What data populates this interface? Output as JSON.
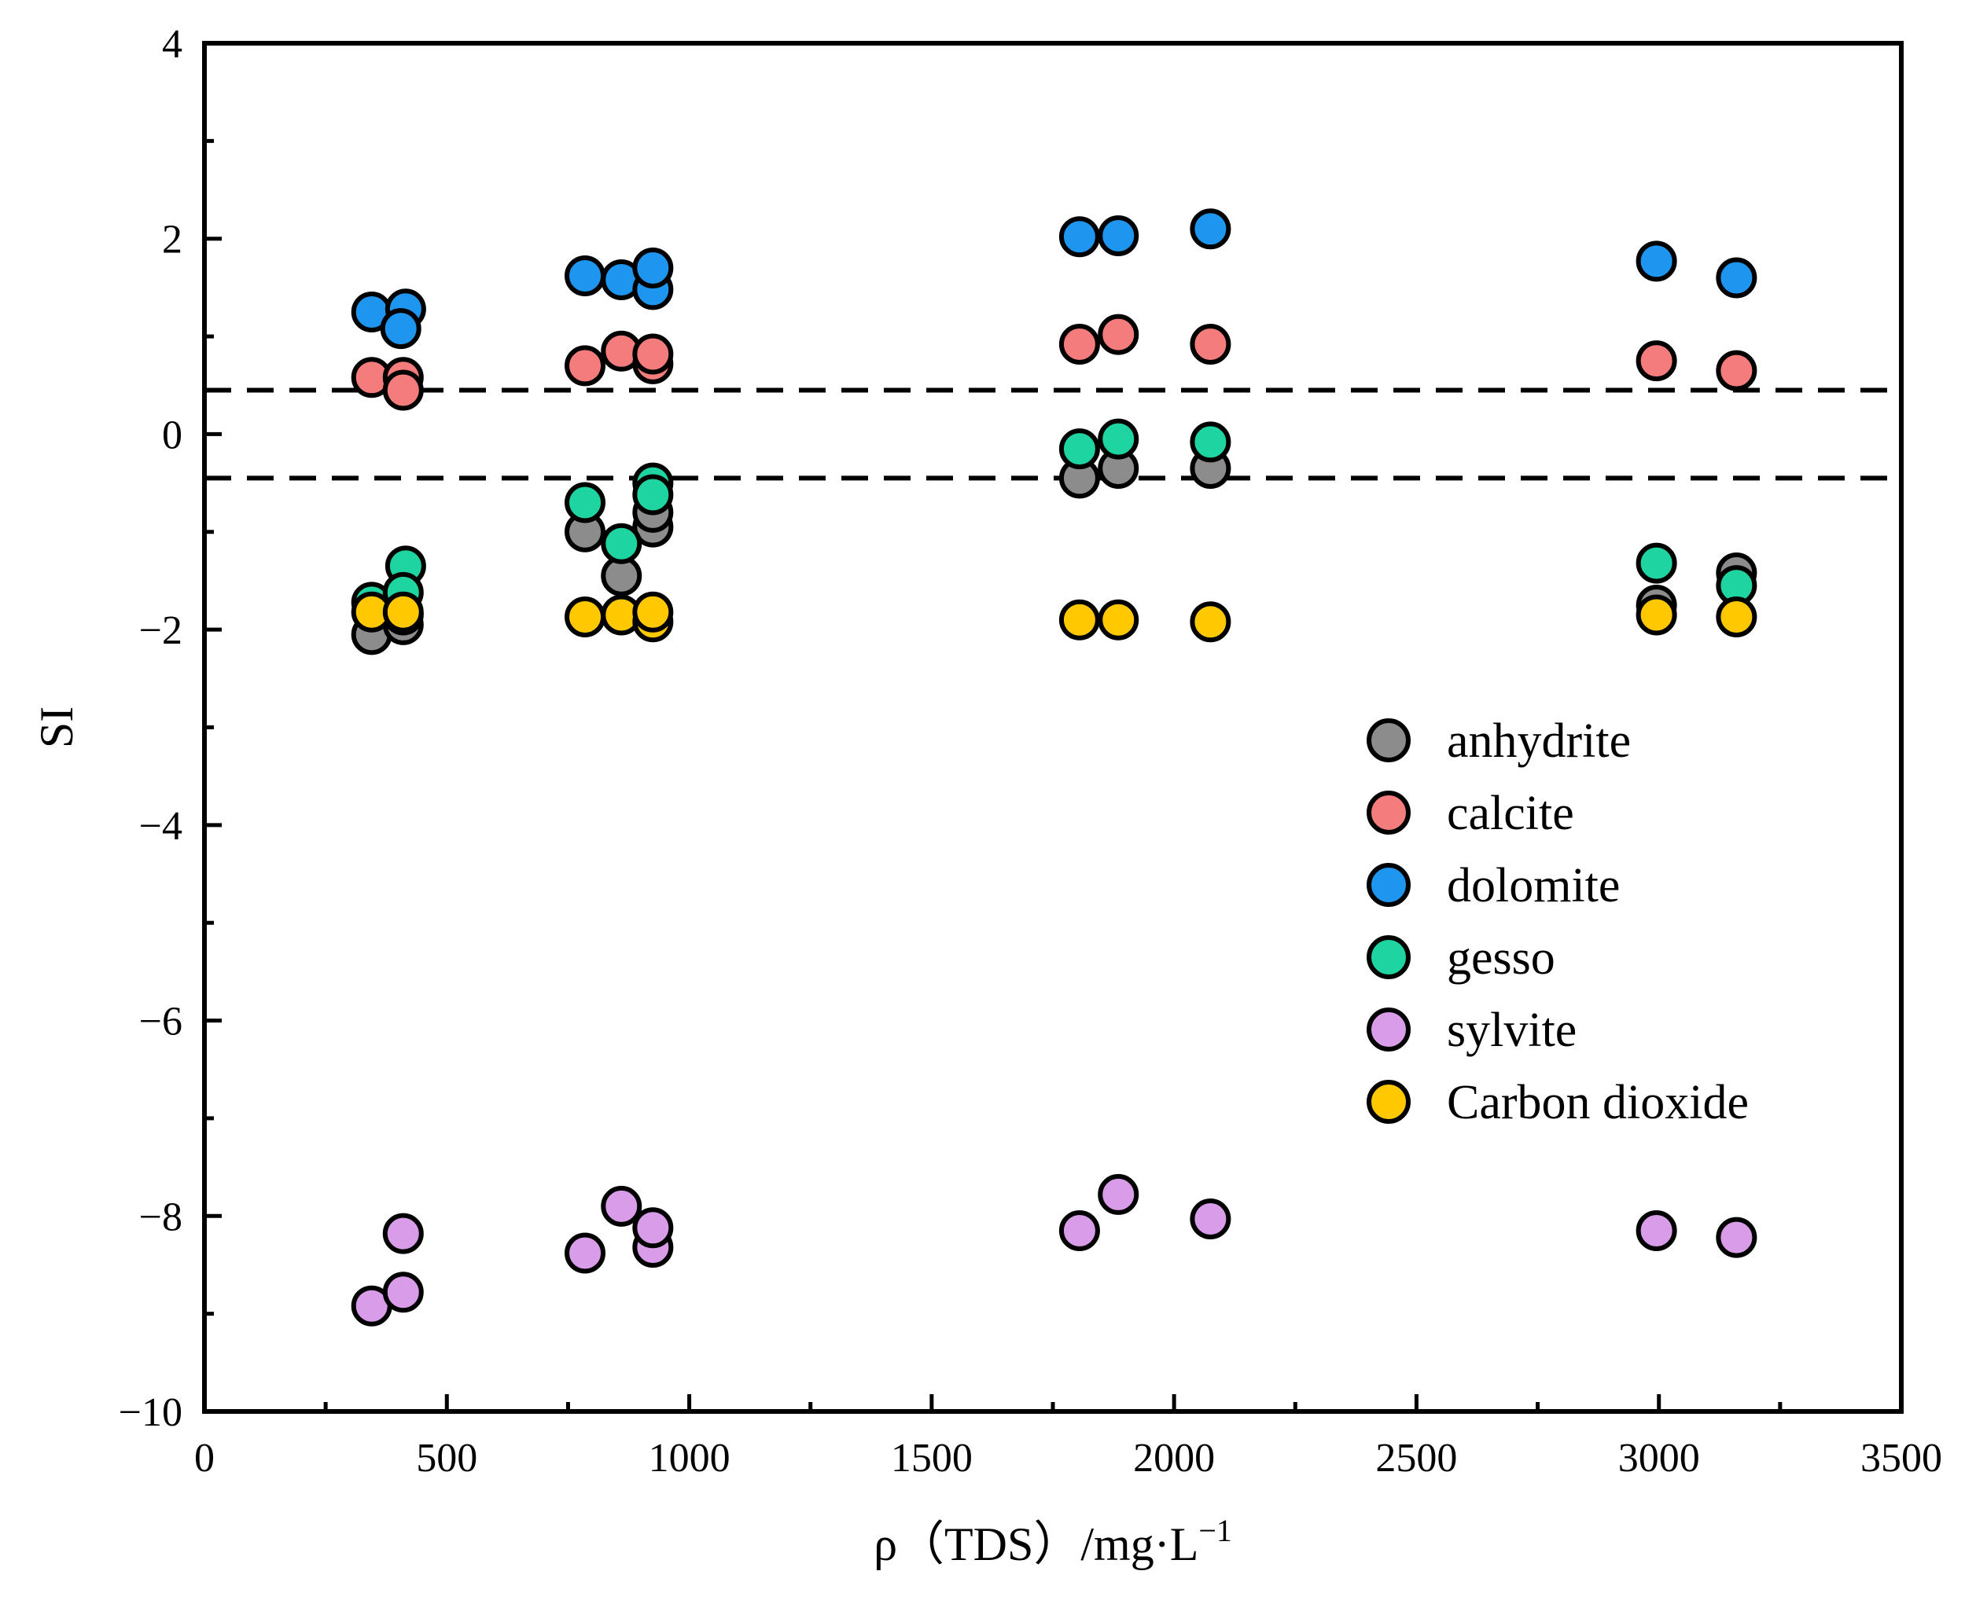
{
  "chart_data": {
    "type": "scatter",
    "title": "",
    "xlabel": "ρ（TDS）/mg·L",
    "xlabel_superscript": "−1",
    "ylabel": "SI",
    "xlim": [
      0,
      3500
    ],
    "ylim": [
      -10,
      4
    ],
    "x_ticks": [
      0,
      500,
      1000,
      1500,
      2000,
      2500,
      3000,
      3500
    ],
    "x_tick_labels": [
      "0",
      "500",
      "1000",
      "1500",
      "2000",
      "2500",
      "3000",
      "3500"
    ],
    "y_ticks": [
      -10,
      -8,
      -6,
      -4,
      -2,
      0,
      2,
      4
    ],
    "y_tick_labels": [
      "−10",
      "−8",
      "−6",
      "−4",
      "−2",
      "0",
      "2",
      "4"
    ],
    "x_minor_step": 250,
    "y_minor_step": 1,
    "grid": false,
    "reference_lines": [
      {
        "axis": "y",
        "value": 0.45,
        "style": "dashed"
      },
      {
        "axis": "y",
        "value": -0.45,
        "style": "dashed"
      }
    ],
    "legend_position": "right",
    "series": [
      {
        "name": "anhydrite",
        "color": "#8c8c8c",
        "points": [
          [
            345,
            -2.05
          ],
          [
            410,
            -1.95
          ],
          [
            410,
            -1.85
          ],
          [
            785,
            -1.0
          ],
          [
            860,
            -1.45
          ],
          [
            925,
            -0.95
          ],
          [
            925,
            -0.8
          ],
          [
            1805,
            -0.45
          ],
          [
            1885,
            -0.35
          ],
          [
            2075,
            -0.35
          ],
          [
            2995,
            -1.75
          ],
          [
            3160,
            -1.42
          ]
        ]
      },
      {
        "name": "calcite",
        "color": "#f47c7c",
        "points": [
          [
            345,
            0.58
          ],
          [
            410,
            0.58
          ],
          [
            410,
            0.45
          ],
          [
            785,
            0.7
          ],
          [
            860,
            0.85
          ],
          [
            925,
            0.72
          ],
          [
            925,
            0.82
          ],
          [
            1805,
            0.92
          ],
          [
            1885,
            1.02
          ],
          [
            2075,
            0.92
          ],
          [
            2995,
            0.75
          ],
          [
            3160,
            0.65
          ]
        ]
      },
      {
        "name": "dolomite",
        "color": "#1e96f0",
        "points": [
          [
            345,
            1.25
          ],
          [
            415,
            1.28
          ],
          [
            405,
            1.08
          ],
          [
            785,
            1.62
          ],
          [
            860,
            1.58
          ],
          [
            925,
            1.48
          ],
          [
            925,
            1.7
          ],
          [
            1805,
            2.02
          ],
          [
            1885,
            2.03
          ],
          [
            2075,
            2.1
          ],
          [
            2995,
            1.77
          ],
          [
            3160,
            1.6
          ]
        ]
      },
      {
        "name": "gesso",
        "color": "#1ed4a0",
        "points": [
          [
            345,
            -1.72
          ],
          [
            415,
            -1.35
          ],
          [
            410,
            -1.62
          ],
          [
            785,
            -0.7
          ],
          [
            860,
            -1.12
          ],
          [
            925,
            -0.5
          ],
          [
            925,
            -0.62
          ],
          [
            1805,
            -0.15
          ],
          [
            1885,
            -0.05
          ],
          [
            2075,
            -0.08
          ],
          [
            2995,
            -1.32
          ],
          [
            3160,
            -1.55
          ]
        ]
      },
      {
        "name": "sylvite",
        "color": "#d89ce8",
        "points": [
          [
            345,
            -8.92
          ],
          [
            410,
            -8.78
          ],
          [
            410,
            -8.18
          ],
          [
            785,
            -8.38
          ],
          [
            860,
            -7.9
          ],
          [
            925,
            -8.32
          ],
          [
            925,
            -8.12
          ],
          [
            1805,
            -8.15
          ],
          [
            1885,
            -7.78
          ],
          [
            2075,
            -8.03
          ],
          [
            2995,
            -8.15
          ],
          [
            3160,
            -8.22
          ]
        ]
      },
      {
        "name": "Carbon dioxide",
        "color": "#ffc800",
        "points": [
          [
            345,
            -1.82
          ],
          [
            410,
            -1.82
          ],
          [
            785,
            -1.87
          ],
          [
            860,
            -1.85
          ],
          [
            925,
            -1.92
          ],
          [
            925,
            -1.82
          ],
          [
            1805,
            -1.9
          ],
          [
            1885,
            -1.9
          ],
          [
            2075,
            -1.92
          ],
          [
            2995,
            -1.85
          ],
          [
            3160,
            -1.87
          ]
        ]
      }
    ]
  }
}
